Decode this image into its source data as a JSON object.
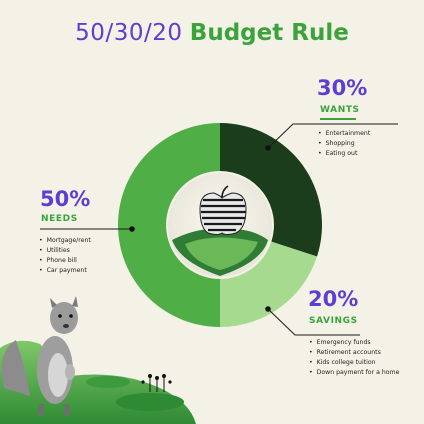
{
  "title": {
    "part1": "50/30/20",
    "part2": "Budget Rule"
  },
  "chart_data": {
    "type": "pie",
    "donut": true,
    "title": "50/30/20 Budget Rule",
    "slices": [
      {
        "label": "WANTS",
        "percent_label": "30%",
        "value": 30,
        "color": "#1b3d1c",
        "items": [
          "Entertainment",
          "Shopping",
          "Eating out"
        ]
      },
      {
        "label": "SAVINGS",
        "percent_label": "20%",
        "value": 20,
        "color": "#a6da8e",
        "items": [
          "Emergency funds",
          "Retirement accounts",
          "Kids college tuition",
          "Down payment for a home"
        ]
      },
      {
        "label": "NEEDS",
        "percent_label": "50%",
        "value": 50,
        "color": "#4fae45",
        "items": [
          "Mortgage/rent",
          "Utilities",
          "Phone bill",
          "Car payment"
        ]
      }
    ]
  }
}
